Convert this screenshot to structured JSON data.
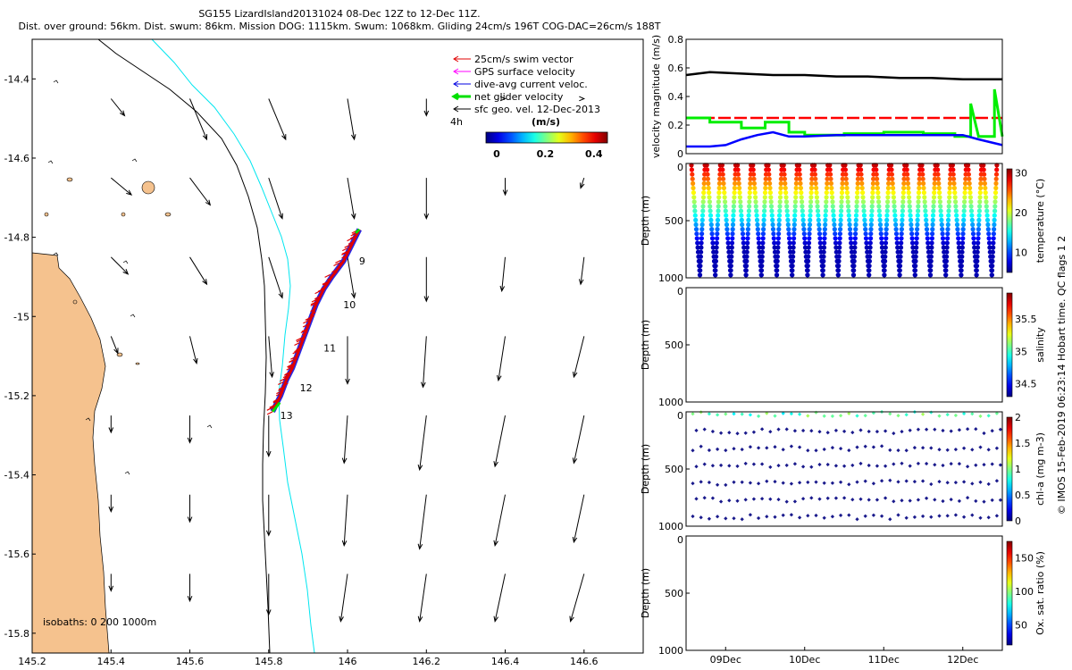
{
  "header": {
    "line1": "SG155 LizardIsland20131024 08-Dec 12Z to 12-Dec 11Z.",
    "line2": "Dist. over ground: 56km. Dist. swum: 86km. Mission DOG: 1115km. Swum: 1068km. Gliding 24cm/s 196T COG-DAC=26cm/s 188T"
  },
  "colors": {
    "land": "#f5c28e",
    "isobath_200": "#000000",
    "isobath_1000": "#00e6f0",
    "swim": "#e00000",
    "gps": "#ff00ff",
    "dac": "#0000e0",
    "net": "#00e000",
    "sfc": "#000000",
    "vel_black": "#000000",
    "vel_red": "#ff0000",
    "vel_green": "#00ee00",
    "vel_blue": "#0000ff",
    "marker_dark": "#1a1a8c"
  },
  "chart_data": [
    {
      "type": "map",
      "xlim": [
        145.2,
        146.75
      ],
      "ylim": [
        -15.85,
        -14.3
      ],
      "x_ticks": [
        145.2,
        145.4,
        145.6,
        145.8,
        146,
        146.2,
        146.4,
        146.6
      ],
      "x_tick_labels": [
        "145.2",
        "145.4",
        "145.6",
        "145.8",
        "146",
        "146.2",
        "146.4",
        "146.6"
      ],
      "y_ticks": [
        -14.4,
        -14.6,
        -14.8,
        -15,
        -15.2,
        -15.4,
        -15.6,
        -15.8
      ],
      "y_tick_labels": [
        "-14.4",
        "-14.6",
        "-14.8",
        "-15",
        "-15.2",
        "-15.4",
        "-15.6",
        "-15.8"
      ],
      "legend": [
        {
          "label": "25cm/s swim vector",
          "color_key": "swim"
        },
        {
          "label": "GPS surface velocity",
          "color_key": "gps"
        },
        {
          "label": "dive-avg current veloc.",
          "color_key": "dac"
        },
        {
          "label": "net glider velocity",
          "color_key": "net"
        },
        {
          "label": "sfc geo. vel. 12-Dec-2013",
          "color_key": "sfc"
        }
      ],
      "legend_note": "4h",
      "colorbar": {
        "title": "(m/s)",
        "range": [
          0,
          0.5
        ],
        "tick_labels": [
          "0",
          "0.2",
          "0.4"
        ],
        "tick_values": [
          0,
          0.2,
          0.4
        ]
      },
      "isobath_label": "isobaths: 0   200  1000m",
      "day_labels": [
        {
          "text": "9",
          "lon": 146.02,
          "lat": -14.86
        },
        {
          "text": "10",
          "lon": 145.98,
          "lat": -14.97
        },
        {
          "text": "11",
          "lon": 145.93,
          "lat": -15.08
        },
        {
          "text": "12",
          "lon": 145.87,
          "lat": -15.18
        },
        {
          "text": "13",
          "lon": 145.82,
          "lat": -15.25
        }
      ],
      "track": [
        [
          145.81,
          -15.24
        ],
        [
          145.83,
          -15.2
        ],
        [
          145.845,
          -15.16
        ],
        [
          145.86,
          -15.13
        ],
        [
          145.875,
          -15.09
        ],
        [
          145.89,
          -15.05
        ],
        [
          145.905,
          -15.01
        ],
        [
          145.92,
          -14.97
        ],
        [
          145.94,
          -14.93
        ],
        [
          145.96,
          -14.9
        ],
        [
          145.99,
          -14.86
        ],
        [
          146.01,
          -14.82
        ],
        [
          146.03,
          -14.78
        ]
      ],
      "sfc_vectors": {
        "lons": [
          145.4,
          145.6,
          145.8,
          146.0,
          146.2,
          146.4,
          146.6
        ],
        "lats": [
          -14.45,
          -14.65,
          -14.85,
          -15.05,
          -15.25,
          -15.45,
          -15.65
        ],
        "u": [
          [
            0.04,
            0.05,
            0.05,
            0.02,
            0.0,
            0.0,
            0.0
          ],
          [
            0.06,
            0.06,
            0.04,
            0.02,
            0.0,
            0.0,
            -0.01
          ],
          [
            0.05,
            0.05,
            0.04,
            0.02,
            0.0,
            -0.01,
            -0.01
          ],
          [
            0.02,
            0.02,
            0.01,
            0.0,
            -0.01,
            -0.02,
            -0.03
          ],
          [
            0.0,
            0.0,
            0.0,
            -0.01,
            -0.02,
            -0.03,
            -0.03
          ],
          [
            0.0,
            0.0,
            0.0,
            -0.01,
            -0.02,
            -0.03,
            -0.03
          ],
          [
            0.0,
            0.0,
            0.0,
            -0.02,
            -0.02,
            -0.03,
            -0.04
          ]
        ],
        "v": [
          [
            -0.05,
            -0.12,
            -0.12,
            -0.12,
            -0.05,
            0.0,
            0.0
          ],
          [
            -0.05,
            -0.08,
            -0.12,
            -0.12,
            -0.12,
            -0.05,
            -0.03
          ],
          [
            -0.05,
            -0.08,
            -0.12,
            -0.12,
            -0.13,
            -0.1,
            -0.08
          ],
          [
            -0.05,
            -0.08,
            -0.12,
            -0.14,
            -0.15,
            -0.13,
            -0.12
          ],
          [
            -0.05,
            -0.08,
            -0.12,
            -0.14,
            -0.16,
            -0.15,
            -0.14
          ],
          [
            -0.05,
            -0.08,
            -0.12,
            -0.15,
            -0.16,
            -0.15,
            -0.14
          ],
          [
            -0.05,
            -0.08,
            -0.12,
            -0.14,
            -0.14,
            -0.14,
            -0.14
          ]
        ]
      }
    },
    {
      "type": "line",
      "ylabel": "velocity magnitude (m/s)",
      "ylim": [
        0,
        0.8
      ],
      "y_ticks": [
        0,
        0.2,
        0.4,
        0.6,
        0.8
      ],
      "y_tick_labels": [
        "0",
        "0.2",
        "0.4",
        "0.6",
        "0.8"
      ],
      "xlim": [
        8.5,
        12.5
      ],
      "series": [
        {
          "color_key": "vel_black",
          "style": "solid",
          "x": [
            8.5,
            8.8,
            9.2,
            9.6,
            10.0,
            10.4,
            10.8,
            11.2,
            11.6,
            12.0,
            12.5
          ],
          "y": [
            0.55,
            0.57,
            0.56,
            0.55,
            0.55,
            0.54,
            0.54,
            0.53,
            0.53,
            0.52,
            0.52
          ]
        },
        {
          "color_key": "vel_red",
          "style": "dashed",
          "x": [
            8.5,
            12.5
          ],
          "y": [
            0.25,
            0.25
          ]
        },
        {
          "color_key": "vel_green",
          "style": "solid",
          "x": [
            8.5,
            8.8,
            8.8,
            9.2,
            9.2,
            9.5,
            9.5,
            9.8,
            9.8,
            10.0,
            10.0,
            10.5,
            10.5,
            11.0,
            11.0,
            11.5,
            11.5,
            11.9,
            11.9,
            12.1,
            12.1,
            12.2,
            12.2,
            12.4,
            12.4,
            12.5
          ],
          "y": [
            0.25,
            0.25,
            0.22,
            0.22,
            0.18,
            0.18,
            0.22,
            0.22,
            0.15,
            0.15,
            0.13,
            0.13,
            0.14,
            0.14,
            0.15,
            0.15,
            0.14,
            0.14,
            0.12,
            0.12,
            0.35,
            0.12,
            0.12,
            0.12,
            0.45,
            0.12
          ]
        },
        {
          "color_key": "vel_blue",
          "style": "solid",
          "x": [
            8.5,
            8.8,
            9.0,
            9.2,
            9.4,
            9.6,
            9.8,
            10.0,
            10.4,
            10.8,
            11.2,
            11.6,
            12.0,
            12.2,
            12.5
          ],
          "y": [
            0.05,
            0.05,
            0.06,
            0.1,
            0.13,
            0.15,
            0.12,
            0.12,
            0.13,
            0.13,
            0.13,
            0.13,
            0.13,
            0.1,
            0.06
          ]
        }
      ]
    },
    {
      "type": "scatter",
      "ylabel": "Depth (m)",
      "y_ticks": [
        0,
        500,
        1000
      ],
      "y_tick_labels": [
        "0",
        "500",
        "1000"
      ],
      "ylim": [
        0,
        1000
      ],
      "xlim": [
        8.5,
        12.5
      ],
      "colorbar": {
        "label": "temperature (°C)",
        "range": [
          5,
          31
        ],
        "tick_labels": [
          "10",
          "20",
          "30"
        ],
        "tick_values": [
          10,
          20,
          30
        ]
      },
      "dives": 20
    },
    {
      "type": "scatter",
      "ylabel": "Depth (m)",
      "y_ticks": [
        0,
        500,
        1000
      ],
      "y_tick_labels": [
        "0",
        "500",
        "1000"
      ],
      "ylim": [
        0,
        1000
      ],
      "xlim": [
        8.5,
        12.5
      ],
      "colorbar": {
        "label": "salinity",
        "range": [
          34.3,
          35.9
        ],
        "tick_labels": [
          "34.5",
          "35",
          "35.5"
        ],
        "tick_values": [
          34.5,
          35,
          35.5
        ]
      }
    },
    {
      "type": "scatter",
      "ylabel": "Depth (m)",
      "y_ticks": [
        0,
        500,
        1000
      ],
      "y_tick_labels": [
        "0",
        "500",
        "1000"
      ],
      "ylim": [
        0,
        1000
      ],
      "xlim": [
        8.5,
        12.5
      ],
      "colorbar": {
        "label": "chl-a (mg m-3)",
        "range": [
          0,
          2
        ],
        "tick_labels": [
          "0",
          "0.5",
          "1",
          "1.5",
          "2"
        ],
        "tick_values": [
          0,
          0.5,
          1,
          1.5,
          2
        ]
      }
    },
    {
      "type": "scatter",
      "ylabel": "Depth (m)",
      "y_ticks": [
        0,
        500,
        1000
      ],
      "y_tick_labels": [
        "0",
        "500",
        "1000"
      ],
      "ylim": [
        0,
        1000
      ],
      "xlim": [
        8.5,
        12.5
      ],
      "x_tick_labels": [
        "09Dec",
        "10Dec",
        "11Dec",
        "12Dec"
      ],
      "x_ticks": [
        9,
        10,
        11,
        12
      ],
      "colorbar": {
        "label": "Ox. sat. ratio (%)",
        "range": [
          20,
          175
        ],
        "tick_labels": [
          "50",
          "100",
          "150"
        ],
        "tick_values": [
          50,
          100,
          150
        ]
      }
    }
  ],
  "side_label": "© IMOS 15-Feb-2019 06:23:14 Hobart time. QC flags 1  2"
}
